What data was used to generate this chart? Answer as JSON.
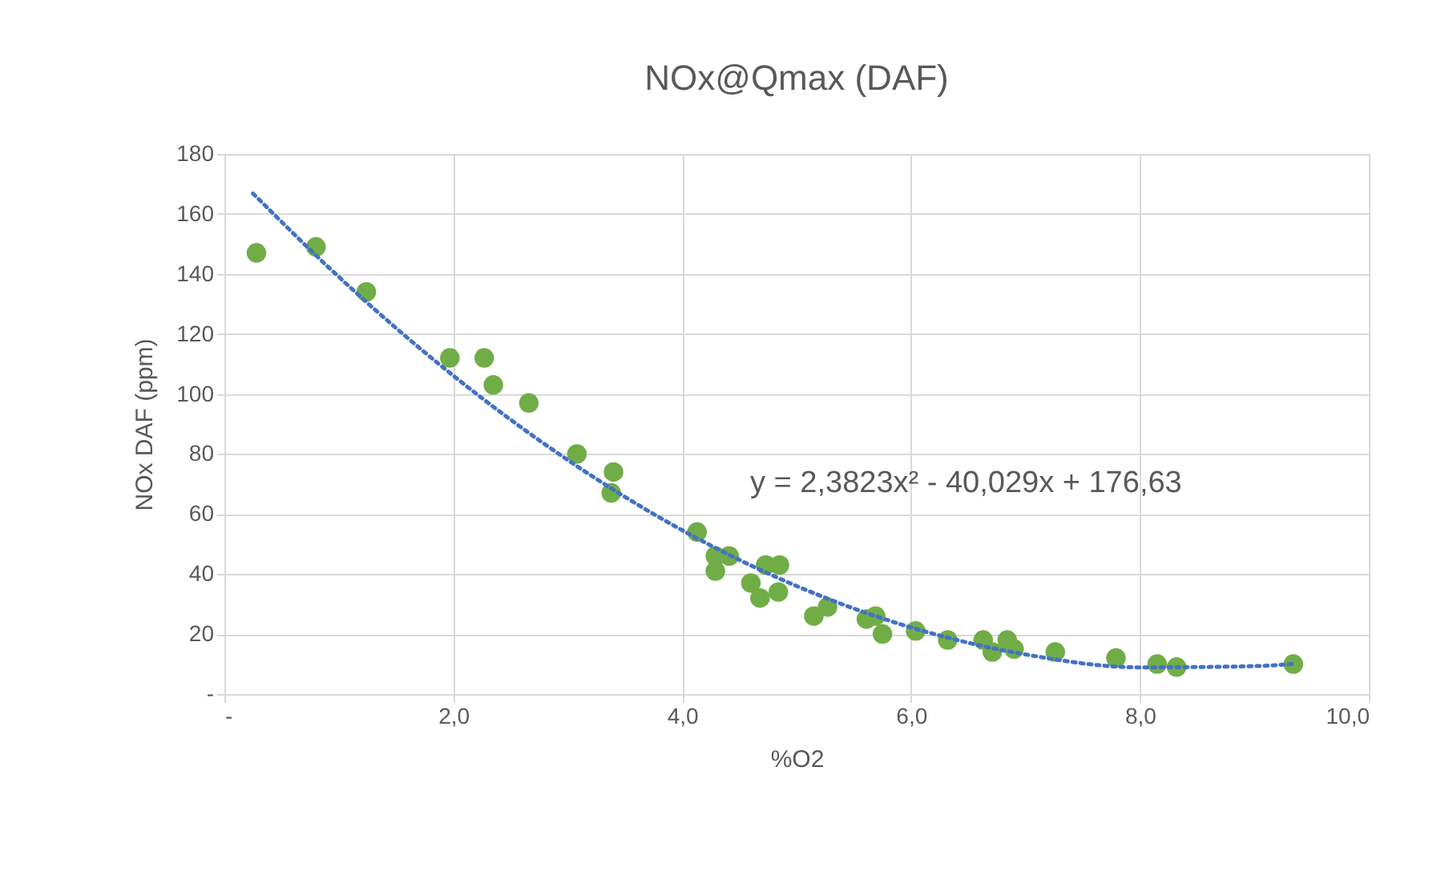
{
  "chart_data": {
    "type": "scatter",
    "title": "NOx@Qmax (DAF)",
    "xlabel": "%O2",
    "ylabel": "NOx DAF (ppm)",
    "xlim": [
      0,
      10
    ],
    "xticks": [
      {
        "value": 0,
        "label": "-"
      },
      {
        "value": 2,
        "label": "2,0"
      },
      {
        "value": 4,
        "label": "4,0"
      },
      {
        "value": 6,
        "label": "6,0"
      },
      {
        "value": 8,
        "label": "8,0"
      },
      {
        "value": 10,
        "label": "10,0"
      }
    ],
    "ylim": [
      0,
      180
    ],
    "yticks": [
      {
        "value": 0,
        "label": "-"
      },
      20,
      40,
      60,
      80,
      100,
      120,
      140,
      160,
      180
    ],
    "grid": true,
    "annotations": [
      "y = 2,3823x² - 40,029x + 176,63"
    ],
    "series": [
      {
        "type": "scatter",
        "marker": "circle",
        "color": "#70ad47",
        "x": [
          0.28,
          0.8,
          1.24,
          1.97,
          2.27,
          2.35,
          2.66,
          3.08,
          3.4,
          3.38,
          4.13,
          4.29,
          4.29,
          4.41,
          4.6,
          4.73,
          4.85,
          4.68,
          4.84,
          5.15,
          5.27,
          5.61,
          5.69,
          5.75,
          6.04,
          6.32,
          6.63,
          6.71,
          6.84,
          6.9,
          7.26,
          7.79,
          8.15,
          8.32,
          9.34
        ],
        "values": [
          147,
          149,
          134,
          112,
          112,
          103,
          97,
          80,
          74,
          67,
          54,
          46,
          41,
          46,
          37,
          43,
          43,
          32,
          34,
          26,
          29,
          25,
          26,
          20,
          21,
          18,
          18,
          14,
          18,
          15,
          14,
          12,
          10,
          9,
          10
        ]
      },
      {
        "type": "line",
        "color": "#4472c4",
        "line_style": "dotted",
        "x": [
          0.25,
          1,
          2,
          3,
          4,
          5,
          6,
          7,
          8,
          9,
          9.35
        ],
        "values": [
          166.8,
          139.0,
          106.1,
          78.0,
          54.6,
          36.0,
          22.2,
          13.2,
          8.9,
          9.3,
          10.1
        ]
      }
    ]
  }
}
